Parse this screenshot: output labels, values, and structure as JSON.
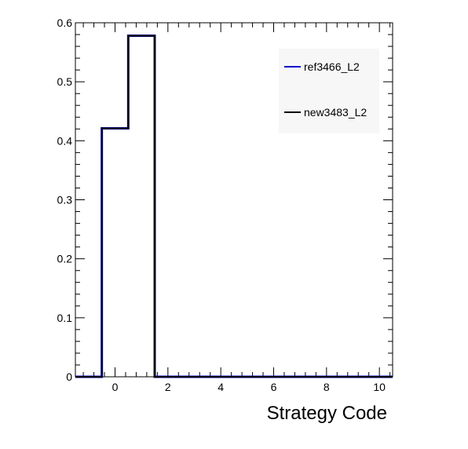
{
  "chart_data": {
    "type": "histogram-step",
    "xlabel": "Strategy Code",
    "ylabel": "",
    "xlim": [
      -1.5,
      10.5
    ],
    "ylim": [
      0,
      0.6
    ],
    "x_ticks": [
      0,
      2,
      4,
      6,
      8,
      10
    ],
    "y_ticks": [
      0,
      0.1,
      0.2,
      0.3,
      0.4,
      0.5,
      0.6
    ],
    "x_tick_labels": [
      "0",
      "2",
      "4",
      "6",
      "8",
      "10"
    ],
    "y_tick_labels": [
      "0",
      "0.1",
      "0.2",
      "0.3",
      "0.4",
      "0.5",
      "0.6"
    ],
    "bin_edges": [
      -1.5,
      -0.5,
      0.5,
      1.5,
      2.5,
      3.5,
      4.5,
      5.5,
      6.5,
      7.5,
      8.5,
      9.5,
      10.5
    ],
    "series": [
      {
        "name": "ref3466_L2",
        "color": "#0000cc",
        "values": [
          0,
          0.421,
          0.578,
          0,
          0,
          0,
          0,
          0,
          0,
          0,
          0,
          0
        ]
      },
      {
        "name": "new3483_L2",
        "color": "#000000",
        "values": [
          0,
          0.421,
          0.578,
          0,
          0,
          0,
          0,
          0,
          0,
          0,
          0,
          0
        ]
      }
    ],
    "legend_position": "top-right",
    "grid": false
  }
}
